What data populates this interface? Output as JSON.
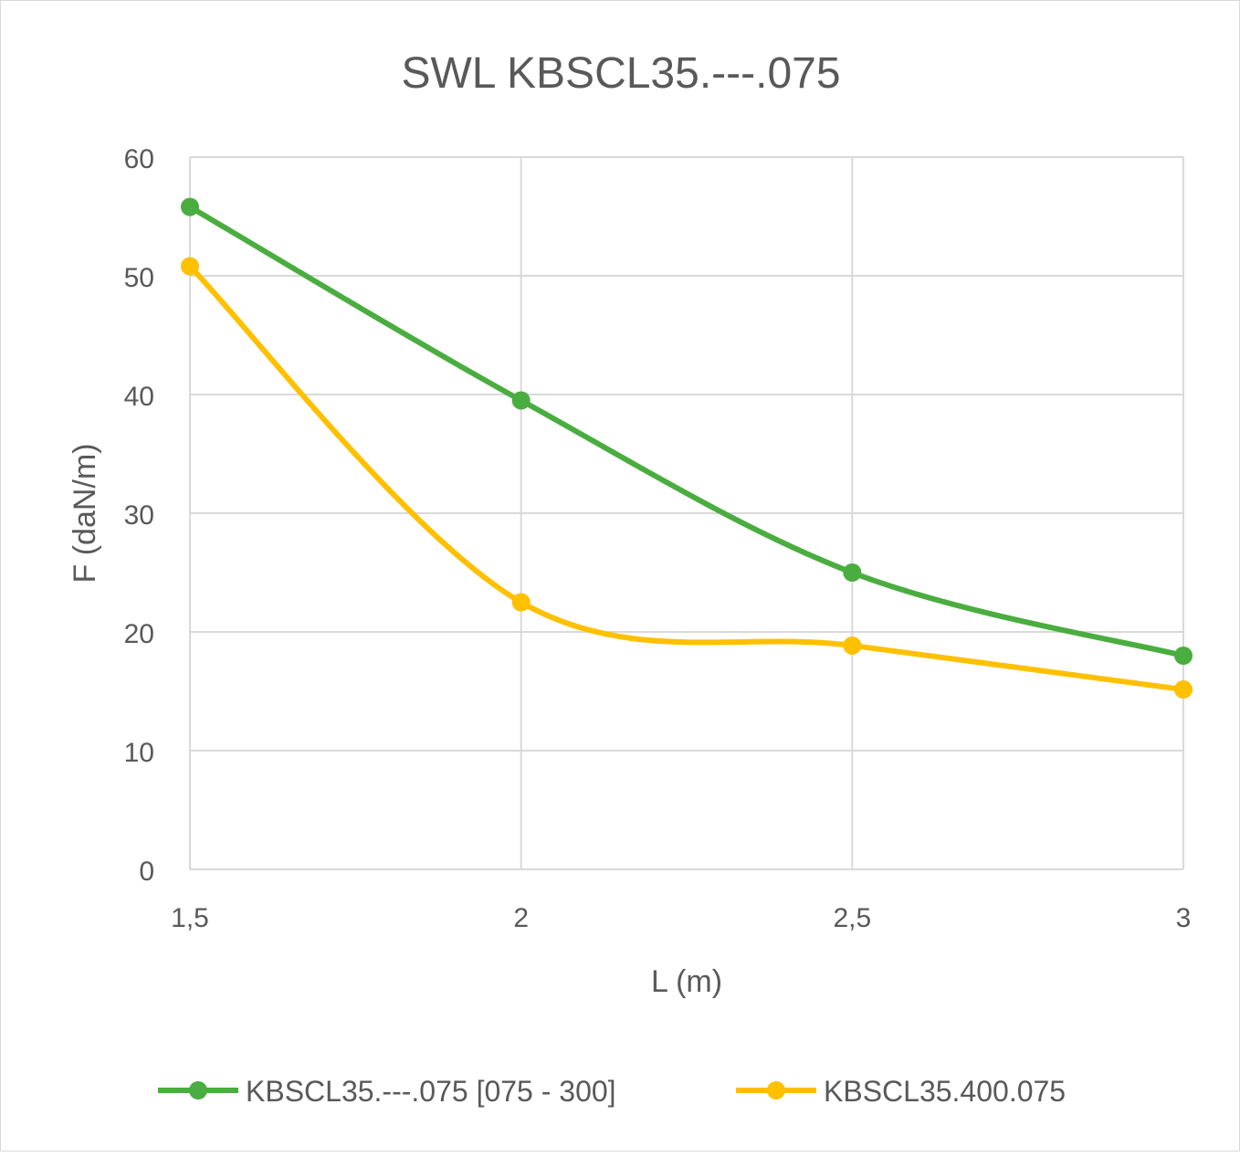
{
  "chart_data": {
    "type": "line",
    "title": "SWL KBSCL35.---.075",
    "xlabel": "L (m)",
    "ylabel": "F (daN/m)",
    "categories": [
      "1,5",
      "2",
      "2,5",
      "3"
    ],
    "x": [
      1.5,
      2,
      2.5,
      3
    ],
    "xlim": [
      1.5,
      3
    ],
    "ylim": [
      0,
      60
    ],
    "yticks": [
      0,
      10,
      20,
      30,
      40,
      50,
      60
    ],
    "grid": true,
    "smooth": true,
    "legend_position": "bottom",
    "series": [
      {
        "name": "KBSCL35.---.075 [075 - 300]",
        "color": "#4aad3f",
        "values": [
          55.8,
          39.5,
          25.0,
          18.0
        ]
      },
      {
        "name": "KBSCL35.400.075",
        "color": "#ffc000",
        "values": [
          50.8,
          22.5,
          18.85,
          15.15
        ]
      }
    ]
  }
}
